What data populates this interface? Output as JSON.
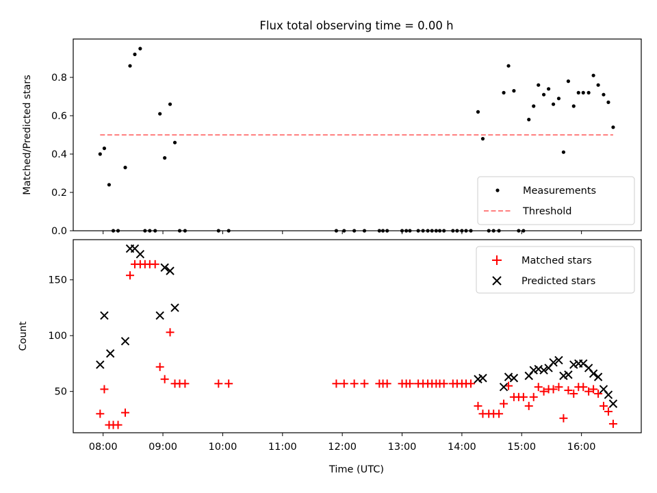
{
  "chart_data": [
    {
      "type": "scatter",
      "title": "Flux total observing time = 0.00 h",
      "xlabel": "",
      "ylabel": "Matched/Predicted stars",
      "ylim": [
        0,
        1.0
      ],
      "yticks": [
        "0.0",
        "0.2",
        "0.4",
        "0.6",
        "0.8"
      ],
      "xlim_hours": [
        7.5,
        17.0
      ],
      "legend_position": "lower-right",
      "series": [
        {
          "name": "Measurements",
          "marker": "dot",
          "color": "#000000",
          "points": [
            [
              7.95,
              0.4
            ],
            [
              8.02,
              0.43
            ],
            [
              8.1,
              0.24
            ],
            [
              8.17,
              0.0
            ],
            [
              8.25,
              0.0
            ],
            [
              8.37,
              0.33
            ],
            [
              8.45,
              0.86
            ],
            [
              8.53,
              0.92
            ],
            [
              8.62,
              0.95
            ],
            [
              8.7,
              0.0
            ],
            [
              8.78,
              0.0
            ],
            [
              8.87,
              0.0
            ],
            [
              8.95,
              0.61
            ],
            [
              9.03,
              0.38
            ],
            [
              9.12,
              0.66
            ],
            [
              9.2,
              0.46
            ],
            [
              9.28,
              0.0
            ],
            [
              9.37,
              0.0
            ],
            [
              9.93,
              0.0
            ],
            [
              10.1,
              0.0
            ],
            [
              11.9,
              0.0
            ],
            [
              12.03,
              0.0
            ],
            [
              12.2,
              0.0
            ],
            [
              12.37,
              0.0
            ],
            [
              12.62,
              0.0
            ],
            [
              12.68,
              0.0
            ],
            [
              12.75,
              0.0
            ],
            [
              13.0,
              0.0
            ],
            [
              13.07,
              0.0
            ],
            [
              13.13,
              0.0
            ],
            [
              13.27,
              0.0
            ],
            [
              13.35,
              0.0
            ],
            [
              13.43,
              0.0
            ],
            [
              13.5,
              0.0
            ],
            [
              13.57,
              0.0
            ],
            [
              13.63,
              0.0
            ],
            [
              13.7,
              0.0
            ],
            [
              13.85,
              0.0
            ],
            [
              13.92,
              0.0
            ],
            [
              14.0,
              0.0
            ],
            [
              14.07,
              0.0
            ],
            [
              14.15,
              0.0
            ],
            [
              14.27,
              0.62
            ],
            [
              14.35,
              0.48
            ],
            [
              14.45,
              0.0
            ],
            [
              14.53,
              0.0
            ],
            [
              14.62,
              0.0
            ],
            [
              14.7,
              0.72
            ],
            [
              14.78,
              0.86
            ],
            [
              14.87,
              0.73
            ],
            [
              14.95,
              0.0
            ],
            [
              15.03,
              0.0
            ],
            [
              15.12,
              0.58
            ],
            [
              15.2,
              0.65
            ],
            [
              15.28,
              0.76
            ],
            [
              15.37,
              0.71
            ],
            [
              15.45,
              0.74
            ],
            [
              15.53,
              0.66
            ],
            [
              15.62,
              0.69
            ],
            [
              15.7,
              0.41
            ],
            [
              15.78,
              0.78
            ],
            [
              15.87,
              0.65
            ],
            [
              15.95,
              0.72
            ],
            [
              16.03,
              0.72
            ],
            [
              16.12,
              0.72
            ],
            [
              16.2,
              0.81
            ],
            [
              16.28,
              0.76
            ],
            [
              16.37,
              0.71
            ],
            [
              16.45,
              0.67
            ],
            [
              16.53,
              0.54
            ]
          ]
        },
        {
          "name": "Threshold",
          "marker": "dashed-line",
          "color": "#ff7f7f",
          "points": [
            [
              7.95,
              0.5
            ],
            [
              16.53,
              0.5
            ]
          ]
        }
      ]
    },
    {
      "type": "scatter",
      "title": "",
      "xlabel": "Time (UTC)",
      "ylabel": "Count",
      "ylim": [
        13,
        186
      ],
      "yticks": [
        "50",
        "100",
        "150"
      ],
      "xlim_hours": [
        7.5,
        17.0
      ],
      "xticks": [
        "08:00",
        "09:00",
        "10:00",
        "11:00",
        "12:00",
        "13:00",
        "14:00",
        "15:00",
        "16:00"
      ],
      "legend_position": "upper-right",
      "series": [
        {
          "name": "Matched stars",
          "marker": "plus",
          "color": "#ff0000",
          "points": [
            [
              7.95,
              30
            ],
            [
              8.02,
              52
            ],
            [
              8.1,
              20
            ],
            [
              8.17,
              20
            ],
            [
              8.25,
              20
            ],
            [
              8.37,
              31
            ],
            [
              8.45,
              154
            ],
            [
              8.53,
              164
            ],
            [
              8.62,
              164
            ],
            [
              8.7,
              164
            ],
            [
              8.78,
              164
            ],
            [
              8.87,
              164
            ],
            [
              8.95,
              72
            ],
            [
              9.03,
              61
            ],
            [
              9.12,
              103
            ],
            [
              9.2,
              57
            ],
            [
              9.28,
              57
            ],
            [
              9.37,
              57
            ],
            [
              9.93,
              57
            ],
            [
              10.1,
              57
            ],
            [
              11.9,
              57
            ],
            [
              12.03,
              57
            ],
            [
              12.2,
              57
            ],
            [
              12.37,
              57
            ],
            [
              12.62,
              57
            ],
            [
              12.68,
              57
            ],
            [
              12.75,
              57
            ],
            [
              13.0,
              57
            ],
            [
              13.07,
              57
            ],
            [
              13.13,
              57
            ],
            [
              13.27,
              57
            ],
            [
              13.35,
              57
            ],
            [
              13.43,
              57
            ],
            [
              13.5,
              57
            ],
            [
              13.57,
              57
            ],
            [
              13.63,
              57
            ],
            [
              13.7,
              57
            ],
            [
              13.85,
              57
            ],
            [
              13.92,
              57
            ],
            [
              14.0,
              57
            ],
            [
              14.07,
              57
            ],
            [
              14.15,
              57
            ],
            [
              14.27,
              37
            ],
            [
              14.35,
              30
            ],
            [
              14.45,
              30
            ],
            [
              14.53,
              30
            ],
            [
              14.62,
              30
            ],
            [
              14.7,
              39
            ],
            [
              14.78,
              55
            ],
            [
              14.87,
              45
            ],
            [
              14.95,
              45
            ],
            [
              15.03,
              45
            ],
            [
              15.12,
              37
            ],
            [
              15.2,
              45
            ],
            [
              15.28,
              54
            ],
            [
              15.37,
              50
            ],
            [
              15.45,
              52
            ],
            [
              15.53,
              52
            ],
            [
              15.62,
              54
            ],
            [
              15.7,
              26
            ],
            [
              15.78,
              51
            ],
            [
              15.87,
              48
            ],
            [
              15.95,
              54
            ],
            [
              16.03,
              54
            ],
            [
              16.12,
              50
            ],
            [
              16.2,
              52
            ],
            [
              16.28,
              48
            ],
            [
              16.37,
              37
            ],
            [
              16.45,
              32
            ],
            [
              16.53,
              21
            ]
          ]
        },
        {
          "name": "Predicted stars",
          "marker": "x",
          "color": "#000000",
          "points": [
            [
              7.95,
              74
            ],
            [
              8.02,
              118
            ],
            [
              8.12,
              84
            ],
            [
              8.37,
              95
            ],
            [
              8.45,
              178
            ],
            [
              8.53,
              178
            ],
            [
              8.62,
              173
            ],
            [
              8.95,
              118
            ],
            [
              9.03,
              161
            ],
            [
              9.12,
              158
            ],
            [
              9.2,
              125
            ],
            [
              14.27,
              61
            ],
            [
              14.35,
              62
            ],
            [
              14.7,
              54
            ],
            [
              14.78,
              63
            ],
            [
              14.87,
              62
            ],
            [
              15.12,
              64
            ],
            [
              15.2,
              69
            ],
            [
              15.28,
              70
            ],
            [
              15.37,
              69
            ],
            [
              15.45,
              71
            ],
            [
              15.53,
              76
            ],
            [
              15.62,
              78
            ],
            [
              15.7,
              64
            ],
            [
              15.78,
              65
            ],
            [
              15.87,
              74
            ],
            [
              15.95,
              75
            ],
            [
              16.03,
              75
            ],
            [
              16.12,
              71
            ],
            [
              16.2,
              66
            ],
            [
              16.28,
              63
            ],
            [
              16.37,
              52
            ],
            [
              16.45,
              47
            ],
            [
              16.53,
              39
            ]
          ]
        }
      ]
    }
  ]
}
